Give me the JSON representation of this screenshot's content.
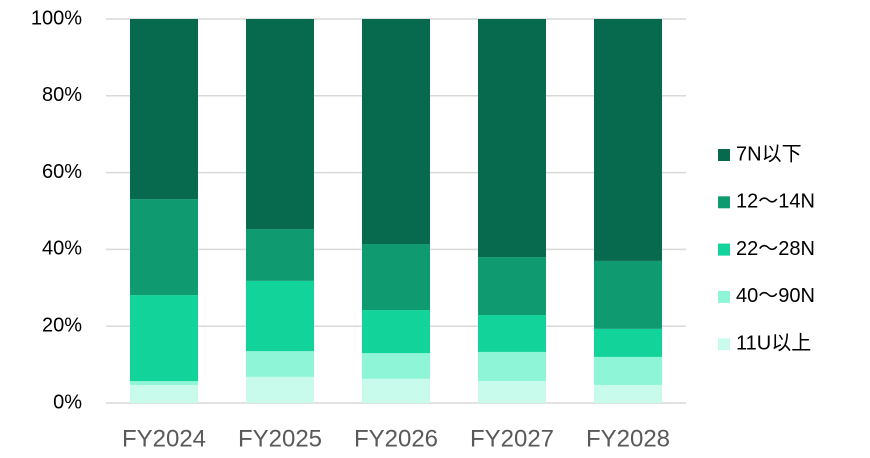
{
  "chart_data": {
    "type": "stacked_bar",
    "categories": [
      "FY2024",
      "FY2025",
      "FY2026",
      "FY2027",
      "FY2028"
    ],
    "series": [
      {
        "name": "11U以上",
        "color": "#c9fbec",
        "values": [
          4.7,
          6.8,
          6.3,
          5.7,
          4.7
        ]
      },
      {
        "name": "40～90N",
        "color": "#8ef5d7",
        "values": [
          1.0,
          6.7,
          6.7,
          7.6,
          7.3
        ]
      },
      {
        "name": "22～28N",
        "color": "#12d39a",
        "values": [
          22.4,
          18.3,
          11.2,
          9.6,
          7.3
        ]
      },
      {
        "name": "12～14N",
        "color": "#0f9a70",
        "values": [
          25.0,
          13.5,
          17.2,
          15.1,
          17.7
        ]
      },
      {
        "name": "7N以下",
        "color": "#076a4e",
        "values": [
          46.9,
          54.7,
          58.6,
          62.0,
          63.0
        ]
      }
    ],
    "ylim": [
      0,
      100
    ],
    "yticks": [
      {
        "value": 0,
        "label": "0%"
      },
      {
        "value": 20,
        "label": "20%"
      },
      {
        "value": 40,
        "label": "40%"
      },
      {
        "value": 60,
        "label": "60%"
      },
      {
        "value": 80,
        "label": "80%"
      },
      {
        "value": 100,
        "label": "100%"
      }
    ],
    "grid": true,
    "legend": "right"
  }
}
